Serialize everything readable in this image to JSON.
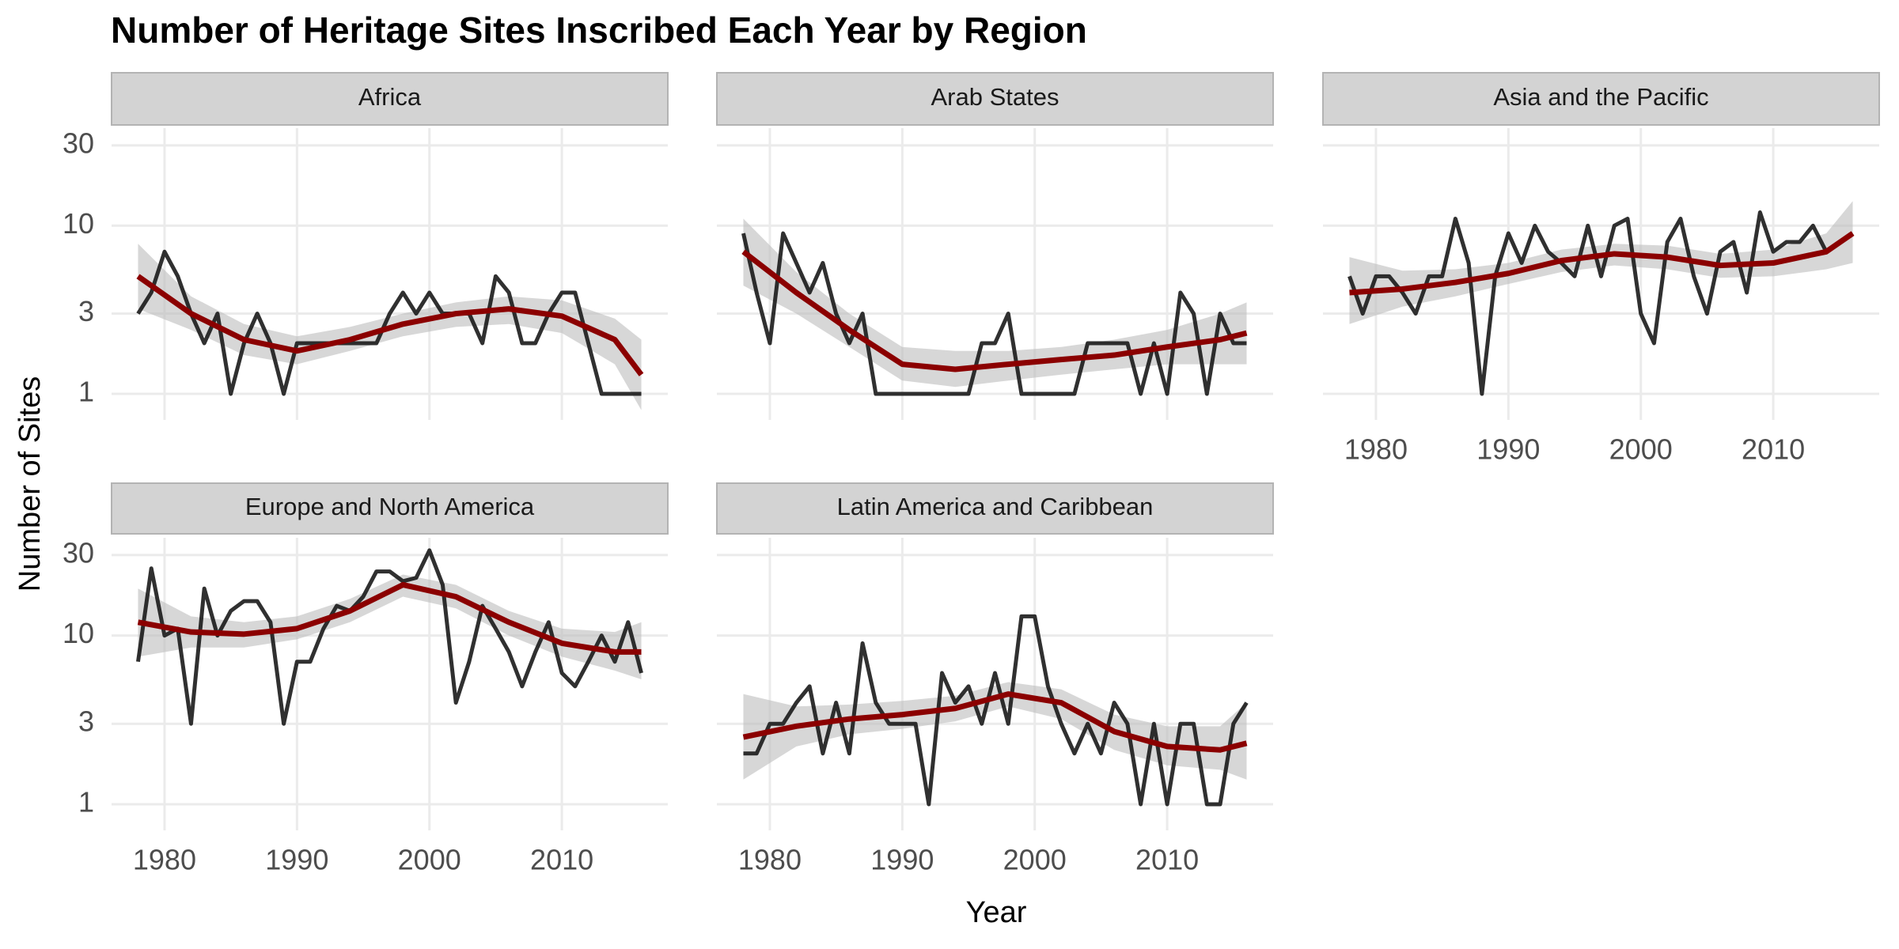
{
  "chart_data": {
    "type": "line",
    "title": "Number of Heritage Sites Inscribed Each Year by Region",
    "xlabel": "Year",
    "ylabel": "Number of Sites",
    "x": [
      1978,
      1979,
      1980,
      1981,
      1982,
      1983,
      1984,
      1985,
      1986,
      1987,
      1988,
      1989,
      1990,
      1991,
      1992,
      1993,
      1994,
      1995,
      1996,
      1997,
      1998,
      1999,
      2000,
      2001,
      2002,
      2003,
      2004,
      2005,
      2006,
      2007,
      2008,
      2009,
      2010,
      2011,
      2012,
      2013,
      2014,
      2015,
      2016
    ],
    "trend_x": [
      1978,
      1982,
      1986,
      1990,
      1994,
      1998,
      2002,
      2006,
      2010,
      2014,
      2016
    ],
    "xlim": [
      1976,
      2018
    ],
    "xticks": [
      1980,
      1990,
      2000,
      2010
    ],
    "ylim": [
      0.7,
      38
    ],
    "yticks": [
      1,
      3,
      10,
      30
    ],
    "ylog": true,
    "grid": true,
    "line_color": "#1a1a1a",
    "trend_color": "#8b0000",
    "band_color": "#bdbdbd",
    "panels": [
      {
        "name": "Africa",
        "values": [
          3,
          4,
          7,
          5,
          3,
          2,
          3,
          1,
          2,
          3,
          2,
          1,
          2,
          2,
          2,
          2,
          2,
          2,
          2,
          3,
          4,
          3,
          4,
          3,
          3,
          3,
          2,
          5,
          4,
          2,
          2,
          3,
          4,
          4,
          2,
          1,
          1,
          1,
          1
        ],
        "trend": {
          "values": [
            5,
            3,
            2.1,
            1.8,
            2.1,
            2.6,
            3.0,
            3.2,
            2.9,
            2.1,
            1.3
          ],
          "lower": [
            3.2,
            2.4,
            1.7,
            1.5,
            1.8,
            2.2,
            2.5,
            2.6,
            2.3,
            1.5,
            0.8
          ],
          "upper": [
            7.8,
            3.8,
            2.6,
            2.2,
            2.5,
            3.0,
            3.5,
            3.8,
            3.6,
            2.8,
            2.1
          ]
        }
      },
      {
        "name": "Arab States",
        "values": [
          9,
          4,
          2,
          9,
          6,
          4,
          6,
          3,
          2,
          3,
          1,
          1,
          1,
          1,
          1,
          1,
          1,
          1,
          2,
          2,
          3,
          1,
          1,
          1,
          1,
          1,
          2,
          2,
          2,
          2,
          1,
          2,
          1,
          4,
          3,
          1,
          3,
          2,
          2
        ],
        "trend": {
          "values": [
            7,
            4,
            2.4,
            1.5,
            1.4,
            1.5,
            1.6,
            1.7,
            1.9,
            2.1,
            2.3
          ],
          "lower": [
            4.4,
            3,
            1.9,
            1.2,
            1.1,
            1.2,
            1.3,
            1.4,
            1.5,
            1.5,
            1.5
          ],
          "upper": [
            11,
            5.3,
            3,
            1.9,
            1.8,
            1.8,
            1.9,
            2.1,
            2.4,
            3,
            3.5
          ]
        }
      },
      {
        "name": "Asia and the Pacific",
        "values": [
          5,
          3,
          5,
          5,
          4,
          3,
          5,
          5,
          11,
          6,
          1,
          5,
          9,
          6,
          10,
          7,
          6,
          5,
          10,
          5,
          10,
          11,
          3,
          2,
          8,
          11,
          5,
          3,
          7,
          8,
          4,
          12,
          7,
          8,
          8,
          10,
          7,
          8,
          9
        ],
        "trend": {
          "values": [
            4,
            4.2,
            4.6,
            5.2,
            6.2,
            6.8,
            6.5,
            5.8,
            6.0,
            7,
            9
          ],
          "lower": [
            2.6,
            3.3,
            3.8,
            4.5,
            5.3,
            5.8,
            5.5,
            4.9,
            5.0,
            5.5,
            6
          ],
          "upper": [
            6.5,
            5.4,
            5.5,
            6,
            7.2,
            7.8,
            7.6,
            6.8,
            7.2,
            9,
            14
          ]
        }
      },
      {
        "name": "Europe and North America",
        "values": [
          7,
          25,
          10,
          11,
          3,
          19,
          10,
          14,
          16,
          16,
          12,
          3,
          7,
          7,
          11,
          15,
          14,
          17,
          24,
          24,
          21,
          22,
          32,
          20,
          4,
          7,
          15,
          11,
          8,
          5,
          8,
          12,
          6,
          5,
          7,
          10,
          7,
          12,
          6
        ],
        "trend": {
          "values": [
            12,
            10.5,
            10.2,
            11,
            14,
            20,
            17,
            12,
            9,
            8,
            8
          ],
          "lower": [
            7.5,
            8.5,
            8.5,
            9.5,
            12,
            17,
            14.5,
            10,
            7.5,
            6.2,
            5.5
          ],
          "upper": [
            19,
            13,
            12,
            13,
            16.5,
            23,
            20,
            14,
            11,
            10.5,
            12
          ]
        }
      },
      {
        "name": "Latin America and Caribbean",
        "values": [
          2,
          2,
          3,
          3,
          4,
          5,
          2,
          4,
          2,
          9,
          4,
          3,
          3,
          3,
          1,
          6,
          4,
          5,
          3,
          6,
          3,
          13,
          13,
          5,
          3,
          2,
          3,
          2,
          4,
          3,
          1,
          3,
          1,
          3,
          3,
          1,
          1,
          3,
          4
        ],
        "trend": {
          "values": [
            2.5,
            2.9,
            3.2,
            3.4,
            3.7,
            4.5,
            4.0,
            2.7,
            2.2,
            2.1,
            2.3
          ],
          "lower": [
            1.4,
            2.2,
            2.6,
            2.8,
            3.1,
            3.8,
            3.2,
            2.1,
            1.7,
            1.6,
            1.4
          ],
          "upper": [
            4.5,
            3.8,
            3.9,
            4.1,
            4.4,
            5.3,
            4.8,
            3.4,
            2.9,
            2.9,
            4
          ]
        }
      }
    ]
  }
}
